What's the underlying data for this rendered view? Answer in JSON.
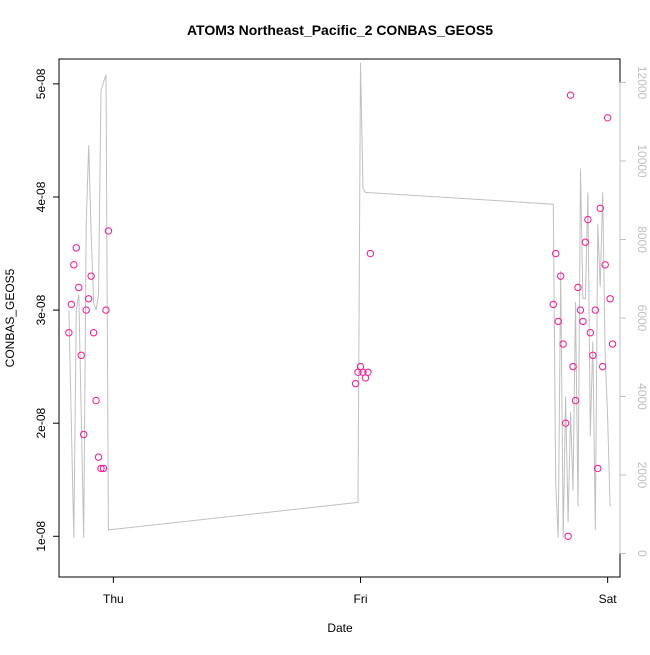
{
  "chart_data": {
    "type": "scatter",
    "title": "ATOM3 Northeast_Pacific_2 CONBAS_GEOS5",
    "xlabel": "Date",
    "ylabel": "CONBAS_GEOS5",
    "x_ticks": [
      "Thu",
      "Fri",
      "Sat"
    ],
    "x_tick_positions": [
      0,
      1,
      2
    ],
    "y_ticks": [
      "1e-08",
      "2e-08",
      "3e-08",
      "4e-08",
      "5e-08"
    ],
    "y_tick_values": [
      1e-08,
      2e-08,
      3e-08,
      4e-08,
      5e-08
    ],
    "ylim": [
      6.4e-09,
      5.22e-08
    ],
    "xlim": [
      -0.22,
      2.05
    ],
    "y2_ticks": [
      "0",
      "2000",
      "4000",
      "6000",
      "8000",
      "10000",
      "12000"
    ],
    "y2_tick_values": [
      0,
      2000,
      4000,
      6000,
      8000,
      10000,
      12000
    ],
    "y2lim": [
      -600,
      12600
    ],
    "grid": false,
    "series": [
      {
        "kind": "points",
        "color": "#ff1493",
        "segments": [
          {
            "x": [
              -0.18,
              -0.17,
              -0.16,
              -0.15,
              -0.14,
              -0.13,
              -0.12,
              -0.11,
              -0.1,
              -0.09,
              -0.08,
              -0.07,
              -0.06,
              -0.05,
              -0.04,
              -0.03,
              -0.02
            ],
            "y": [
              2.8e-08,
              3.05e-08,
              3.4e-08,
              3.55e-08,
              3.2e-08,
              2.6e-08,
              1.9e-08,
              3e-08,
              3.1e-08,
              3.3e-08,
              2.8e-08,
              2.2e-08,
              1.7e-08,
              1.6e-08,
              1.6e-08,
              3e-08,
              3.7e-08
            ]
          },
          {
            "x": [
              0.98,
              0.99,
              1.0,
              1.01,
              1.02,
              1.03,
              1.04
            ],
            "y": [
              2.35e-08,
              2.45e-08,
              2.5e-08,
              2.45e-08,
              2.4e-08,
              2.45e-08,
              3.5e-08
            ]
          },
          {
            "x": [
              1.78,
              1.79,
              1.8,
              1.81,
              1.82,
              1.83,
              1.84,
              1.85,
              1.86,
              1.87,
              1.88,
              1.89,
              1.9,
              1.91,
              1.92,
              1.93,
              1.94,
              1.95,
              1.96,
              1.97,
              1.98,
              1.99,
              2.0,
              2.01,
              2.02
            ],
            "y": [
              3.05e-08,
              3.5e-08,
              2.9e-08,
              3.3e-08,
              2.7e-08,
              2e-08,
              1e-08,
              4.9e-08,
              2.5e-08,
              2.2e-08,
              3.2e-08,
              3e-08,
              2.9e-08,
              3.6e-08,
              3.8e-08,
              2.8e-08,
              2.6e-08,
              3e-08,
              1.6e-08,
              3.9e-08,
              2.5e-08,
              3.4e-08,
              4.7e-08,
              3.1e-08,
              2.7e-08
            ]
          }
        ]
      },
      {
        "kind": "line",
        "axis": "right",
        "color": "#c0c0c0",
        "x": [
          -0.18,
          -0.16,
          -0.15,
          -0.14,
          -0.12,
          -0.11,
          -0.1,
          -0.09,
          -0.08,
          -0.07,
          -0.06,
          -0.05,
          -0.04,
          -0.03,
          -0.02,
          0.99,
          1.0,
          1.01,
          1.02,
          1.78,
          1.79,
          1.8,
          1.81,
          1.82,
          1.83,
          1.84,
          1.85,
          1.86,
          1.87,
          1.88,
          1.89,
          1.9,
          1.91,
          1.92,
          1.93,
          1.94,
          1.95,
          1.96,
          1.97,
          1.98,
          1.99,
          2.0,
          2.01
        ],
        "y": [
          6200,
          400,
          6200,
          6600,
          400,
          8400,
          10400,
          8200,
          6400,
          6200,
          6600,
          11800,
          12000,
          12200,
          600,
          1300,
          12500,
          9300,
          9200,
          8900,
          1800,
          400,
          7200,
          400,
          4000,
          800,
          3600,
          1600,
          6400,
          1200,
          9800,
          6500,
          6500,
          9200,
          3000,
          5400,
          600,
          8400,
          6800,
          9200,
          5000,
          3500,
          1200
        ]
      }
    ]
  }
}
